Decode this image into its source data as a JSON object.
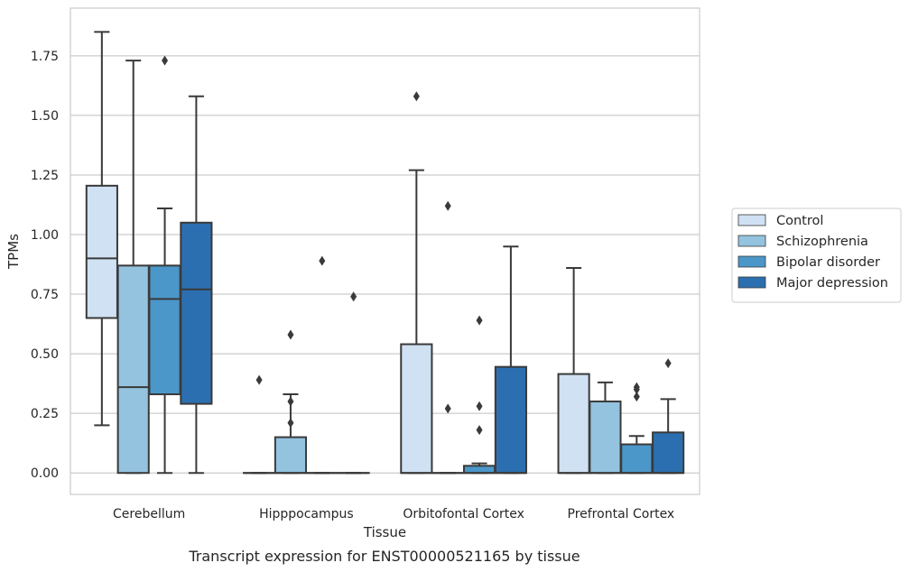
{
  "caption": "Transcript expression for ENST00000521165 by tissue",
  "chart_data": {
    "type": "box",
    "title": "",
    "xlabel": "Tissue",
    "ylabel": "TPMs",
    "ylim": [
      -0.09,
      1.95
    ],
    "yticks": [
      "0.00",
      "0.25",
      "0.50",
      "0.75",
      "1.00",
      "1.25",
      "1.50",
      "1.75"
    ],
    "grid": "horizontal",
    "legend_position": "right",
    "categories": [
      "Cerebellum",
      "Hipppocampus",
      "Orbitofontal Cortex",
      "Prefrontal Cortex"
    ],
    "series": [
      {
        "name": "Control",
        "color": "#cfe1f2",
        "boxes": [
          {
            "min": 0.2,
            "q1": 0.65,
            "median": 0.9,
            "q3": 1.205,
            "max": 1.85,
            "outliers": []
          },
          {
            "min": 0.0,
            "q1": 0.0,
            "median": 0.0,
            "q3": 0.0,
            "max": 0.0,
            "outliers": [
              0.39
            ]
          },
          {
            "min": 0.0,
            "q1": 0.0,
            "median": 0.0,
            "q3": 0.54,
            "max": 1.27,
            "outliers": [
              1.58
            ]
          },
          {
            "min": 0.0,
            "q1": 0.0,
            "median": 0.0,
            "q3": 0.415,
            "max": 0.86,
            "outliers": []
          }
        ]
      },
      {
        "name": "Schizophrenia",
        "color": "#93c3df",
        "boxes": [
          {
            "min": 0.0,
            "q1": 0.0,
            "median": 0.36,
            "q3": 0.87,
            "max": 1.73,
            "outliers": []
          },
          {
            "min": 0.0,
            "q1": 0.0,
            "median": 0.0,
            "q3": 0.15,
            "max": 0.33,
            "outliers": [
              0.58,
              0.3,
              0.21
            ]
          },
          {
            "min": 0.0,
            "q1": 0.0,
            "median": 0.0,
            "q3": 0.0,
            "max": 0.0,
            "outliers": [
              1.12,
              0.27
            ]
          },
          {
            "min": 0.0,
            "q1": 0.0,
            "median": 0.0,
            "q3": 0.3,
            "max": 0.38,
            "outliers": []
          }
        ]
      },
      {
        "name": "Bipolar disorder",
        "color": "#4b97c9",
        "boxes": [
          {
            "min": 0.0,
            "q1": 0.33,
            "median": 0.73,
            "q3": 0.87,
            "max": 1.11,
            "outliers": [
              1.73
            ]
          },
          {
            "min": 0.0,
            "q1": 0.0,
            "median": 0.0,
            "q3": 0.0,
            "max": 0.0,
            "outliers": [
              0.89
            ]
          },
          {
            "min": 0.0,
            "q1": 0.0,
            "median": 0.0,
            "q3": 0.03,
            "max": 0.04,
            "outliers": [
              0.64,
              0.28,
              0.18
            ]
          },
          {
            "min": 0.0,
            "q1": 0.0,
            "median": 0.0,
            "q3": 0.12,
            "max": 0.155,
            "outliers": [
              0.36,
              0.35,
              0.32
            ]
          }
        ]
      },
      {
        "name": "Major depression",
        "color": "#2c6fb0",
        "boxes": [
          {
            "min": 0.0,
            "q1": 0.29,
            "median": 0.77,
            "q3": 1.05,
            "max": 1.58,
            "outliers": []
          },
          {
            "min": 0.0,
            "q1": 0.0,
            "median": 0.0,
            "q3": 0.0,
            "max": 0.0,
            "outliers": [
              0.74
            ]
          },
          {
            "min": 0.0,
            "q1": 0.0,
            "median": 0.0,
            "q3": 0.445,
            "max": 0.95,
            "outliers": []
          },
          {
            "min": 0.0,
            "q1": 0.0,
            "median": 0.0,
            "q3": 0.17,
            "max": 0.31,
            "outliers": [
              0.46
            ]
          }
        ]
      }
    ]
  }
}
